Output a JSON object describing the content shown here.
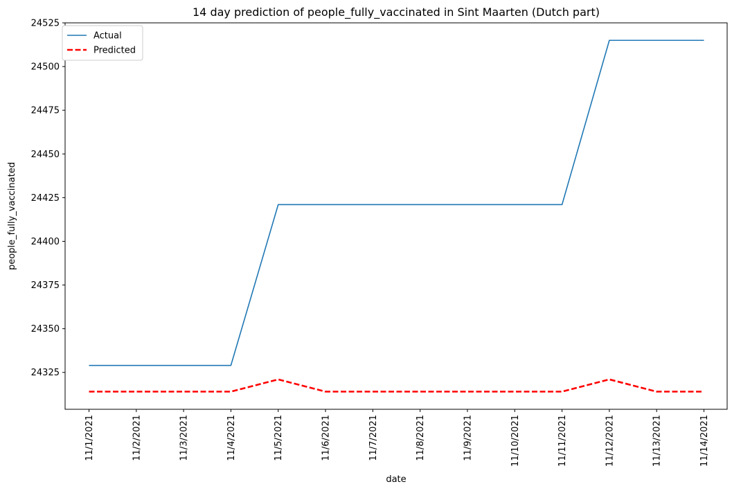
{
  "chart_data": {
    "type": "line",
    "title": "14 day prediction of people_fully_vaccinated in Sint Maarten (Dutch part)",
    "xlabel": "date",
    "ylabel": "people_fully_vaccinated",
    "categories": [
      "11/1/2021",
      "11/2/2021",
      "11/3/2021",
      "11/4/2021",
      "11/5/2021",
      "11/6/2021",
      "11/7/2021",
      "11/8/2021",
      "11/9/2021",
      "11/10/2021",
      "11/11/2021",
      "11/12/2021",
      "11/13/2021",
      "11/14/2021"
    ],
    "yticks": [
      24325,
      24350,
      24375,
      24400,
      24425,
      24450,
      24475,
      24500,
      24525
    ],
    "ylim": [
      24303.9,
      24525
    ],
    "grid": false,
    "legend_position": "upper left",
    "series": [
      {
        "name": "Actual",
        "color": "#1f77b4",
        "style": "solid",
        "values": [
          24329,
          24329,
          24329,
          24329,
          24421,
          24421,
          24421,
          24421,
          24421,
          24421,
          24421,
          24515,
          24515,
          24515
        ]
      },
      {
        "name": "Predicted",
        "color": "#ff0000",
        "style": "dashed",
        "values": [
          24314,
          24314,
          24314,
          24314,
          24321,
          24314,
          24314,
          24314,
          24314,
          24314,
          24314,
          24321,
          24314,
          24314
        ]
      }
    ]
  }
}
